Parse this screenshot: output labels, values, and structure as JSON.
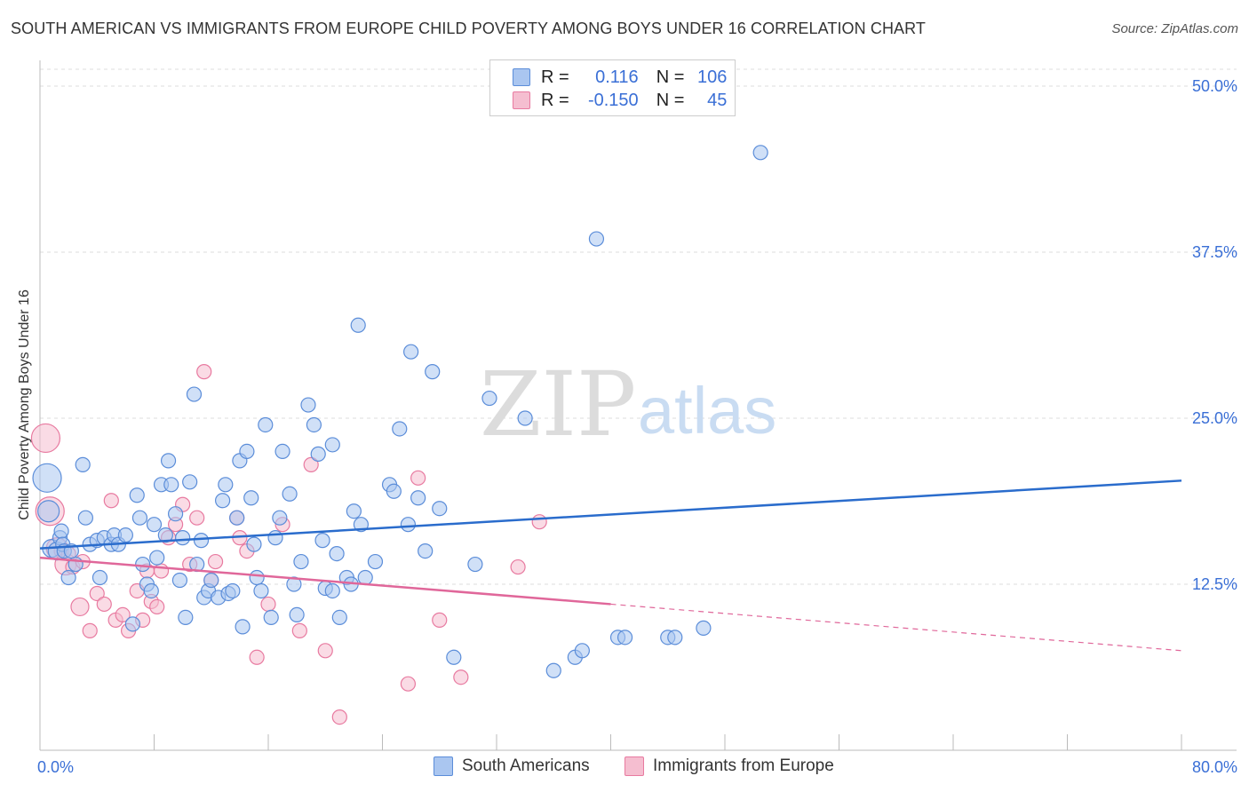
{
  "title": "SOUTH AMERICAN VS IMMIGRANTS FROM EUROPE CHILD POVERTY AMONG BOYS UNDER 16 CORRELATION CHART",
  "source": "Source: ZipAtlas.com",
  "watermark": {
    "zip": "ZIP",
    "atlas": "atlas"
  },
  "colors": {
    "blue": "#5b8dd9",
    "blue_fill": "#aac6f0",
    "pink": "#e87aa0",
    "pink_fill": "#f5bed0",
    "blue_line": "#2a6ccc",
    "pink_line": "#e0679a",
    "tick_text": "#3a6fd6"
  },
  "legend": {
    "rows": [
      {
        "r_label": "R =",
        "r_value": "0.116",
        "n_label": "N =",
        "n_value": "106"
      },
      {
        "r_label": "R =",
        "r_value": "-0.150",
        "n_label": "N =",
        "n_value": "45"
      }
    ]
  },
  "chart_data": {
    "type": "scatter",
    "title": "SOUTH AMERICAN VS IMMIGRANTS FROM EUROPE CHILD POVERTY AMONG BOYS UNDER 16 CORRELATION CHART",
    "xlabel": "",
    "ylabel": "Child Poverty Among Boys Under 16",
    "xlim": [
      0,
      80
    ],
    "ylim": [
      0,
      50
    ],
    "x_tick_labels": [
      "0.0%",
      "80.0%"
    ],
    "y_ticks": [
      12.5,
      25.0,
      37.5,
      50.0
    ],
    "y_tick_labels": [
      "12.5%",
      "25.0%",
      "37.5%",
      "50.0%"
    ],
    "legend_placement": "top-center",
    "series": [
      {
        "name": "South Americans",
        "r": 0.116,
        "n": 106,
        "trend": {
          "x": [
            0,
            80
          ],
          "y": [
            15.2,
            20.3
          ],
          "dashed_from": null
        },
        "points": [
          [
            0.5,
            20.5,
            16
          ],
          [
            0.6,
            18.0,
            12
          ],
          [
            0.8,
            15.2,
            10
          ],
          [
            1.2,
            15.0,
            10
          ],
          [
            1.4,
            16.0,
            8
          ],
          [
            1.5,
            16.5,
            8
          ],
          [
            1.6,
            15.5,
            8
          ],
          [
            1.7,
            15.0,
            8
          ],
          [
            2.0,
            13.0,
            8
          ],
          [
            2.2,
            15.0,
            8
          ],
          [
            2.5,
            14.0,
            8
          ],
          [
            3.0,
            21.5,
            8
          ],
          [
            3.2,
            17.5,
            8
          ],
          [
            3.5,
            15.5,
            8
          ],
          [
            4.0,
            15.8,
            8
          ],
          [
            4.2,
            13.0,
            8
          ],
          [
            4.5,
            16.0,
            8
          ],
          [
            5.0,
            15.5,
            8
          ],
          [
            5.2,
            16.2,
            8
          ],
          [
            5.5,
            15.5,
            8
          ],
          [
            6.0,
            16.2,
            8
          ],
          [
            6.5,
            9.5,
            8
          ],
          [
            6.8,
            19.2,
            8
          ],
          [
            7.0,
            17.5,
            8
          ],
          [
            7.2,
            14.0,
            8
          ],
          [
            7.5,
            12.5,
            8
          ],
          [
            7.8,
            12.0,
            8
          ],
          [
            8.0,
            17.0,
            8
          ],
          [
            8.2,
            14.5,
            8
          ],
          [
            8.5,
            20.0,
            8
          ],
          [
            8.8,
            16.2,
            8
          ],
          [
            9.0,
            21.8,
            8
          ],
          [
            9.2,
            20.0,
            8
          ],
          [
            9.5,
            17.8,
            8
          ],
          [
            9.8,
            12.8,
            8
          ],
          [
            10.0,
            16.0,
            8
          ],
          [
            10.2,
            10.0,
            8
          ],
          [
            10.5,
            20.2,
            8
          ],
          [
            10.8,
            26.8,
            8
          ],
          [
            11.0,
            14.0,
            8
          ],
          [
            11.3,
            15.8,
            8
          ],
          [
            11.5,
            11.5,
            8
          ],
          [
            11.8,
            12.0,
            8
          ],
          [
            12.0,
            12.8,
            8
          ],
          [
            12.5,
            11.5,
            8
          ],
          [
            12.8,
            18.8,
            8
          ],
          [
            13.0,
            20.0,
            8
          ],
          [
            13.2,
            11.8,
            8
          ],
          [
            13.5,
            12.0,
            8
          ],
          [
            13.8,
            17.5,
            8
          ],
          [
            14.0,
            21.8,
            8
          ],
          [
            14.2,
            9.3,
            8
          ],
          [
            14.5,
            22.5,
            8
          ],
          [
            14.8,
            19.0,
            8
          ],
          [
            15.0,
            15.5,
            8
          ],
          [
            15.2,
            13.0,
            8
          ],
          [
            15.5,
            12.0,
            8
          ],
          [
            15.8,
            24.5,
            8
          ],
          [
            16.2,
            10.0,
            8
          ],
          [
            16.5,
            16.0,
            8
          ],
          [
            16.8,
            17.5,
            8
          ],
          [
            17.0,
            22.5,
            8
          ],
          [
            17.5,
            19.3,
            8
          ],
          [
            17.8,
            12.5,
            8
          ],
          [
            18.0,
            10.2,
            8
          ],
          [
            18.3,
            14.2,
            8
          ],
          [
            18.8,
            26.0,
            8
          ],
          [
            19.2,
            24.5,
            8
          ],
          [
            19.5,
            22.3,
            8
          ],
          [
            19.8,
            15.8,
            8
          ],
          [
            20.0,
            12.2,
            8
          ],
          [
            20.5,
            23.0,
            8
          ],
          [
            20.8,
            14.8,
            8
          ],
          [
            21.0,
            10.0,
            8
          ],
          [
            21.5,
            13.0,
            8
          ],
          [
            21.8,
            12.5,
            8
          ],
          [
            22.0,
            18.0,
            8
          ],
          [
            22.5,
            17.0,
            8
          ],
          [
            22.8,
            13.0,
            8
          ],
          [
            23.5,
            14.2,
            8
          ],
          [
            24.5,
            20.0,
            8
          ],
          [
            24.8,
            19.5,
            8
          ],
          [
            25.2,
            24.2,
            8
          ],
          [
            25.8,
            17.0,
            8
          ],
          [
            26.0,
            30.0,
            8
          ],
          [
            26.5,
            19.0,
            8
          ],
          [
            27.0,
            15.0,
            8
          ],
          [
            27.5,
            28.5,
            8
          ],
          [
            28.0,
            18.2,
            8
          ],
          [
            29.0,
            7.0,
            8
          ],
          [
            30.5,
            14.0,
            8
          ],
          [
            31.5,
            26.5,
            8
          ],
          [
            34.0,
            25.0,
            8
          ],
          [
            36.0,
            6.0,
            8
          ],
          [
            37.5,
            7.0,
            8
          ],
          [
            38.0,
            7.5,
            8
          ],
          [
            39.0,
            38.5,
            8
          ],
          [
            40.5,
            8.5,
            8
          ],
          [
            41.0,
            8.5,
            8
          ],
          [
            44.0,
            8.5,
            8
          ],
          [
            44.5,
            8.5,
            8
          ],
          [
            46.5,
            9.2,
            8
          ],
          [
            50.5,
            45.0,
            8
          ],
          [
            20.5,
            12.0,
            8
          ],
          [
            22.3,
            32.0,
            8
          ]
        ]
      },
      {
        "name": "Immigrants from Europe",
        "r": -0.15,
        "n": 45,
        "trend": {
          "x": [
            0,
            80
          ],
          "y": [
            14.5,
            7.5
          ],
          "dashed_from": 40
        },
        "points": [
          [
            0.4,
            23.5,
            16
          ],
          [
            0.7,
            18.0,
            16
          ],
          [
            1.2,
            15.2,
            12
          ],
          [
            1.5,
            15.0,
            8
          ],
          [
            1.8,
            14.0,
            12
          ],
          [
            2.0,
            14.8,
            8
          ],
          [
            2.3,
            13.8,
            8
          ],
          [
            2.8,
            10.8,
            10
          ],
          [
            3.0,
            14.2,
            8
          ],
          [
            3.5,
            9.0,
            8
          ],
          [
            4.0,
            11.8,
            8
          ],
          [
            4.5,
            11.0,
            8
          ],
          [
            5.0,
            18.8,
            8
          ],
          [
            5.3,
            9.8,
            8
          ],
          [
            5.8,
            10.2,
            8
          ],
          [
            6.2,
            9.0,
            8
          ],
          [
            6.8,
            12.0,
            8
          ],
          [
            7.2,
            9.8,
            8
          ],
          [
            7.5,
            13.5,
            8
          ],
          [
            7.8,
            11.2,
            8
          ],
          [
            8.2,
            10.8,
            8
          ],
          [
            8.5,
            13.5,
            8
          ],
          [
            9.0,
            16.0,
            8
          ],
          [
            9.5,
            17.0,
            8
          ],
          [
            10.0,
            18.5,
            8
          ],
          [
            10.5,
            14.0,
            8
          ],
          [
            11.0,
            17.5,
            8
          ],
          [
            11.5,
            28.5,
            8
          ],
          [
            12.0,
            12.8,
            8
          ],
          [
            12.3,
            14.2,
            8
          ],
          [
            13.8,
            17.5,
            8
          ],
          [
            14.0,
            16.0,
            8
          ],
          [
            14.5,
            15.0,
            8
          ],
          [
            15.2,
            7.0,
            8
          ],
          [
            16.0,
            11.0,
            8
          ],
          [
            17.0,
            17.0,
            8
          ],
          [
            18.2,
            9.0,
            8
          ],
          [
            19.0,
            21.5,
            8
          ],
          [
            20.0,
            7.5,
            8
          ],
          [
            21.0,
            2.5,
            8
          ],
          [
            25.8,
            5.0,
            8
          ],
          [
            26.5,
            20.5,
            8
          ],
          [
            28.0,
            9.8,
            8
          ],
          [
            29.5,
            5.5,
            8
          ],
          [
            33.5,
            13.8,
            8
          ],
          [
            35.0,
            17.2,
            8
          ]
        ]
      }
    ]
  },
  "bottom_legend": {
    "south_americans": "South Americans",
    "immigrants_from_europe": "Immigrants from Europe"
  }
}
